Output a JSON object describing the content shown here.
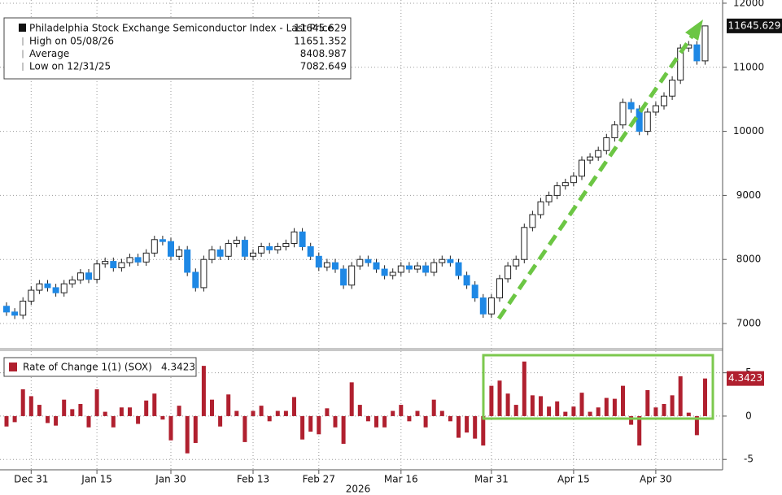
{
  "chart_data": [
    {
      "type": "candlestick",
      "categories": [
        null,
        null,
        null,
        "Dec 31",
        null,
        null,
        null,
        null,
        null,
        null,
        null,
        "Jan 15",
        null,
        null,
        null,
        null,
        null,
        null,
        null,
        null,
        "Jan 30",
        null,
        null,
        null,
        null,
        null,
        null,
        null,
        null,
        null,
        "Feb 13",
        null,
        null,
        null,
        null,
        null,
        null,
        null,
        "Feb 27",
        null,
        null,
        null,
        null,
        null,
        null,
        null,
        null,
        null,
        "Mar 16",
        null,
        null,
        null,
        null,
        null,
        null,
        null,
        null,
        null,
        null,
        "Mar 31",
        null,
        null,
        null,
        null,
        null,
        null,
        null,
        null,
        null,
        "Apr 15",
        null,
        null,
        null,
        null,
        null,
        null,
        null,
        null,
        null,
        "Apr 30",
        null,
        null,
        null,
        null,
        null,
        null
      ],
      "xlabel": "2026",
      "series": [
        {
          "name": "Philadelphia Stock Exchange Semiconductor Index - Last Price",
          "up_color": "#ffffff",
          "down_color": "#1e88e5",
          "open": [
            7270,
            7180,
            7130,
            7350,
            7520,
            7620,
            7560,
            7480,
            7620,
            7680,
            7790,
            7690,
            7930,
            7970,
            7870,
            7950,
            8030,
            7960,
            8100,
            8310,
            8280,
            8050,
            8150,
            7800,
            7560,
            8000,
            8150,
            8050,
            8250,
            8300,
            8050,
            8100,
            8200,
            8150,
            8200,
            8250,
            8430,
            8200,
            8050,
            7880,
            7950,
            7850,
            7600,
            7900,
            8000,
            7950,
            7850,
            7750,
            7800,
            7900,
            7850,
            7900,
            7800,
            7950,
            8000,
            7950,
            7750,
            7600,
            7400,
            7150,
            7400,
            7700,
            7900,
            8000,
            8500,
            8700,
            8900,
            9000,
            9150,
            9200,
            9300,
            9550,
            9600,
            9700,
            9900,
            10100,
            10450,
            10350,
            10000,
            10300,
            10400,
            10550,
            10800,
            11300,
            11350,
            11100
          ],
          "high": [
            7330,
            7240,
            7410,
            7580,
            7680,
            7680,
            7620,
            7680,
            7740,
            7850,
            7850,
            7990,
            8030,
            8030,
            8010,
            8090,
            8090,
            8160,
            8370,
            8370,
            8340,
            8210,
            8210,
            7860,
            8060,
            8210,
            8210,
            8310,
            8360,
            8360,
            8160,
            8260,
            8260,
            8260,
            8310,
            8490,
            8490,
            8260,
            8110,
            8010,
            8010,
            7910,
            7960,
            8060,
            8060,
            8010,
            7910,
            7860,
            7960,
            7960,
            7960,
            7960,
            8010,
            8060,
            8060,
            8010,
            7810,
            7660,
            7460,
            7460,
            7760,
            7960,
            8060,
            8560,
            8760,
            8960,
            9060,
            9210,
            9260,
            9360,
            9610,
            9660,
            9760,
            9960,
            10160,
            10510,
            10510,
            10410,
            10360,
            10460,
            10610,
            10860,
            11360,
            11410,
            11410,
            11651.352
          ],
          "low": [
            7120,
            7070,
            7070,
            7290,
            7460,
            7500,
            7420,
            7420,
            7560,
            7620,
            7630,
            7630,
            7870,
            7810,
            7810,
            7890,
            7900,
            7900,
            8040,
            8220,
            7990,
            7990,
            7740,
            7500,
            7500,
            7940,
            7990,
            7990,
            8190,
            7990,
            7990,
            8040,
            8090,
            8090,
            8140,
            8190,
            8140,
            7990,
            7820,
            7820,
            7790,
            7540,
            7540,
            7840,
            7890,
            7790,
            7690,
            7690,
            7740,
            7790,
            7790,
            7740,
            7740,
            7890,
            7890,
            7690,
            7540,
            7340,
            7090,
            7090,
            7340,
            7640,
            7840,
            7940,
            8440,
            8640,
            8840,
            8940,
            9090,
            9140,
            9240,
            9490,
            9540,
            9640,
            9840,
            10040,
            10290,
            9940,
            9940,
            10240,
            10340,
            10490,
            10740,
            11240,
            11040,
            11040
          ],
          "close": [
            7180,
            7130,
            7350,
            7520,
            7620,
            7560,
            7480,
            7620,
            7680,
            7790,
            7690,
            7930,
            7970,
            7870,
            7950,
            8030,
            7960,
            8100,
            8310,
            8280,
            8050,
            8150,
            7800,
            7560,
            8000,
            8150,
            8050,
            8250,
            8300,
            8050,
            8100,
            8200,
            8150,
            8200,
            8250,
            8430,
            8200,
            8050,
            7880,
            7950,
            7850,
            7600,
            7900,
            8000,
            7950,
            7850,
            7750,
            7800,
            7900,
            7850,
            7900,
            7800,
            7950,
            8000,
            7950,
            7750,
            7600,
            7400,
            7150,
            7400,
            7700,
            7900,
            8000,
            8500,
            8700,
            8900,
            9000,
            9150,
            9200,
            9300,
            9550,
            9600,
            9700,
            9900,
            10100,
            10450,
            10350,
            10000,
            10300,
            10400,
            10550,
            10800,
            11300,
            11350,
            11100,
            11645.629
          ]
        }
      ],
      "stats": [
        {
          "name": "High on 05/08/26",
          "value": 11651.352
        },
        {
          "name": "Average",
          "value": 8408.987
        },
        {
          "name": "Low on 12/31/25",
          "value": 7082.649
        }
      ],
      "ylim": [
        6620,
        12050
      ],
      "yticks": [
        7000,
        8000,
        9000,
        10000,
        11000,
        12000
      ],
      "grid": true
    },
    {
      "type": "bar",
      "series": [
        {
          "name": "Rate of Change 1(1) (SOX)",
          "color": "#b0202f",
          "values": [
            -1.2,
            -0.7,
            3.1,
            2.3,
            1.3,
            -0.8,
            -1.1,
            1.9,
            0.8,
            1.4,
            -1.3,
            3.1,
            0.5,
            -1.3,
            1.0,
            1.0,
            -0.9,
            1.8,
            2.6,
            -0.4,
            -2.8,
            1.2,
            -4.3,
            -3.1,
            5.8,
            1.9,
            -1.2,
            2.5,
            0.6,
            -3.0,
            0.6,
            1.2,
            -0.6,
            0.6,
            0.6,
            2.2,
            -2.7,
            -1.8,
            -2.1,
            0.9,
            -1.3,
            -3.2,
            3.9,
            1.3,
            -0.6,
            -1.3,
            -1.3,
            0.6,
            1.3,
            -0.6,
            0.6,
            -1.3,
            1.9,
            0.6,
            -0.6,
            -2.5,
            -1.9,
            -2.6,
            -3.4,
            3.5,
            4.1,
            2.6,
            1.3,
            6.3,
            2.4,
            2.3,
            1.1,
            1.7,
            0.5,
            1.1,
            2.7,
            0.5,
            1.0,
            2.1,
            2.0,
            3.5,
            -1.0,
            -3.4,
            3.0,
            1.0,
            1.4,
            2.4,
            4.6,
            0.4,
            -2.2,
            4.3423
          ]
        }
      ],
      "ylim": [
        -6.2,
        7.5
      ],
      "yticks": [
        -5,
        0,
        5
      ],
      "grid": true
    }
  ]
}
